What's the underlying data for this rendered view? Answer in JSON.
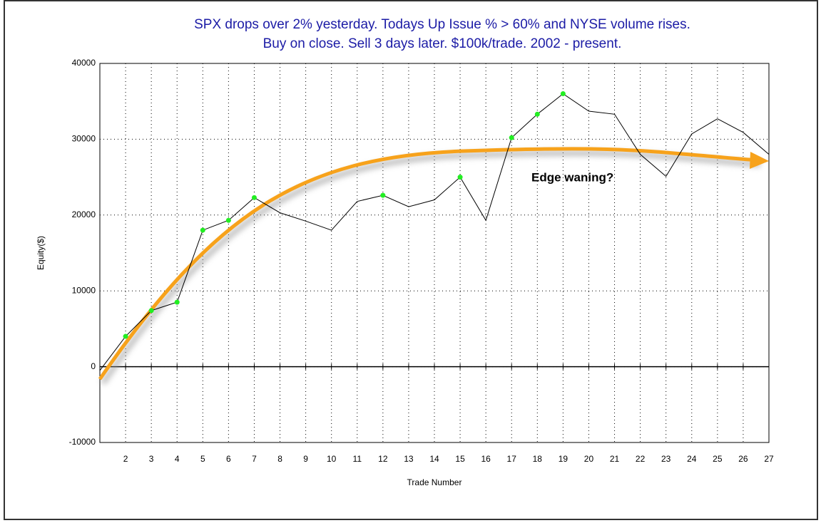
{
  "chart_data": {
    "type": "line",
    "title": [
      "SPX drops over 2% yesterday. Todays Up Issue % > 60% and NYSE volume rises.",
      "Buy on close. Sell 3 days later. $100k/trade. 2002 - present."
    ],
    "x_label": "Trade Number",
    "y_label": "Equity($)",
    "annotation": "Edge waning?",
    "x": [
      1,
      2,
      3,
      4,
      5,
      6,
      7,
      8,
      9,
      10,
      11,
      12,
      13,
      14,
      15,
      16,
      17,
      18,
      19,
      20,
      21,
      22,
      23,
      24,
      25,
      26,
      27
    ],
    "series": [
      {
        "name": "Equity",
        "color": "#000000",
        "values": [
          -500,
          4000,
          7400,
          8500,
          18000,
          19300,
          22300,
          20300,
          19200,
          18000,
          21800,
          22600,
          21100,
          22000,
          25000,
          19300,
          30200,
          33300,
          36000,
          33700,
          33300,
          28000,
          25100,
          30700,
          32700,
          30900,
          28000
        ],
        "marked": [
          false,
          true,
          true,
          true,
          true,
          true,
          true,
          false,
          false,
          false,
          false,
          true,
          false,
          false,
          true,
          false,
          true,
          true,
          true,
          false,
          false,
          false,
          false,
          false,
          false,
          false,
          false
        ],
        "marker_color": "#22ee22"
      }
    ],
    "xlim": [
      1,
      27
    ],
    "xticks": [
      2,
      3,
      4,
      5,
      6,
      7,
      8,
      9,
      10,
      11,
      12,
      13,
      14,
      15,
      16,
      17,
      18,
      19,
      20,
      21,
      22,
      23,
      24,
      25,
      26,
      27
    ],
    "ylim": [
      -10000,
      40000
    ],
    "yticks": [
      -10000,
      0,
      10000,
      20000,
      30000,
      40000
    ],
    "grid": true,
    "arrow_color": "#f7a21b"
  }
}
